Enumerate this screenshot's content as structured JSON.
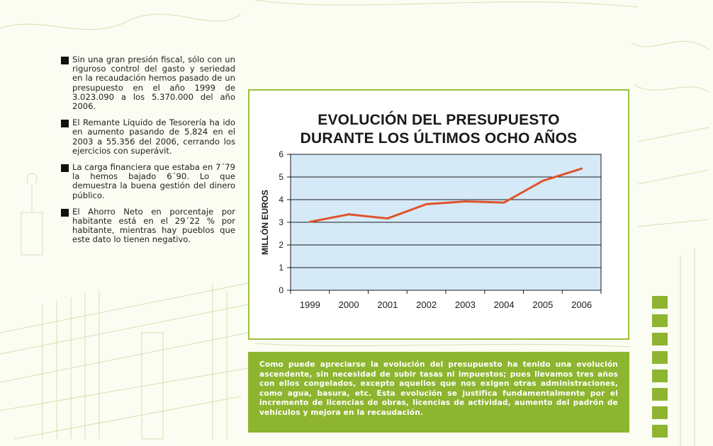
{
  "bullets": [
    "Sin una gran presión fiscal, sólo con un riguroso control del gasto y seriedad en la recaudación hemos pasado de un presupuesto en el año 1999 de 3.023.090 a los 5.370.000 del año 2006.",
    "El Remante Líquido de Tesorería ha ido en aumento pasando de 5.824 en el 2003 a 55.356 del 2006, cerrando los ejercicios con superávit.",
    "La carga financiera que estaba en 7´79 la hemos bajado 6´90. Lo que demuestra la buena gestión del dinero público.",
    "El Ahorro Neto en porcentaje por habitante está en el 29´22 % por habitante, mientras hay pueblos que este dato lo tienen negativo."
  ],
  "chart_data": {
    "type": "line",
    "title": [
      "EVOLUCIÓN DEL PRESUPUESTO",
      "DURANTE LOS ÚLTIMOS OCHO AÑOS"
    ],
    "xlabel": "",
    "ylabel": "MILLÓN EUROS",
    "categories": [
      "1999",
      "2000",
      "2001",
      "2002",
      "2003",
      "2004",
      "2005",
      "2006"
    ],
    "values": [
      3.02,
      3.35,
      3.17,
      3.8,
      3.92,
      3.87,
      4.83,
      5.37
    ],
    "ylim": [
      0,
      6
    ],
    "yticks": [
      "0",
      "1",
      "2",
      "3",
      "4",
      "5",
      "6"
    ],
    "grid": true,
    "line_color": "#e0532a",
    "plot_background": "#d6e9f7"
  },
  "info_text": "Como puede apreciarse la evolución del presupuesto ha tenido una evolución ascendente, sin necesidad de subir tasas ni impuestos; pues llevamos tres años con ellos congelados, excepto aquellos que nos exigen otras administraciones, como agua, basura, etc. Esta evolución se justifica fundamentalmente por el incremento de licencias de obras, licencias de actividad, aumento del padrón de vehículos y mejora en la recaudación.",
  "colors": {
    "accent": "#8db52f",
    "page_background": "#fbfdf3"
  }
}
